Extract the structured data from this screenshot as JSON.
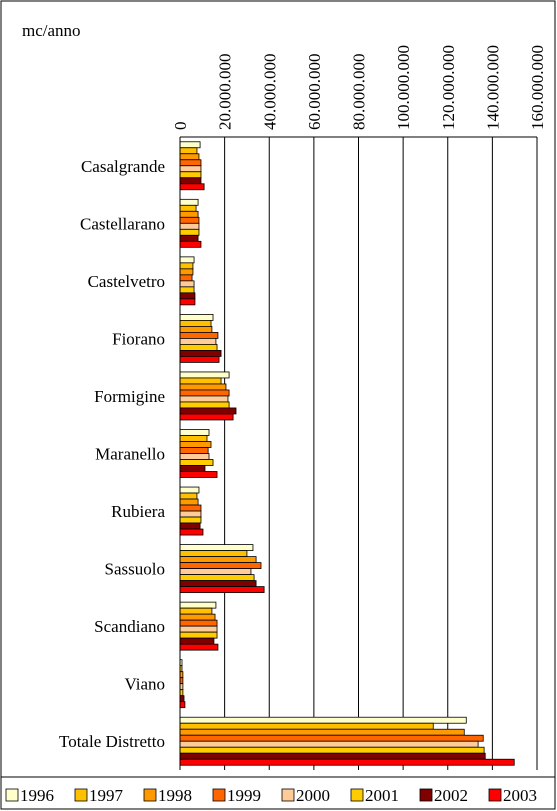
{
  "chart_data": {
    "type": "barh",
    "unit_label": "mc/anno",
    "categories": [
      "Casalgrande",
      "Castellarano",
      "Castelvetro",
      "Fiorano",
      "Formigine",
      "Maranello",
      "Rubiera",
      "Sassuolo",
      "Scandiano",
      "Viano",
      "Totale Distretto"
    ],
    "series": [
      {
        "name": "1996",
        "color": "#ffffcc",
        "values": [
          9000000,
          8100000,
          6300000,
          14800000,
          22000000,
          13000000,
          8500000,
          32700000,
          16100000,
          900000,
          128300000
        ]
      },
      {
        "name": "1997",
        "color": "#ffc000",
        "values": [
          7600000,
          7200000,
          5800000,
          13900000,
          18400000,
          12100000,
          7600000,
          30000000,
          14300000,
          900000,
          113500000
        ]
      },
      {
        "name": "1998",
        "color": "#ff9900",
        "values": [
          8500000,
          8100000,
          5800000,
          14300000,
          20600000,
          13900000,
          8100000,
          34100000,
          15700000,
          1300000,
          127400000
        ]
      },
      {
        "name": "1999",
        "color": "#ff6600",
        "values": [
          9400000,
          8500000,
          5400000,
          17000000,
          22000000,
          12600000,
          9400000,
          36300000,
          16600000,
          1300000,
          135900000
        ]
      },
      {
        "name": "2000",
        "color": "#ffcc99",
        "values": [
          9400000,
          8500000,
          6300000,
          16100000,
          21500000,
          13000000,
          9400000,
          31800000,
          16600000,
          1300000,
          133600000
        ]
      },
      {
        "name": "2001",
        "color": "#ffcc00",
        "values": [
          9400000,
          8500000,
          6300000,
          16600000,
          22000000,
          14800000,
          9400000,
          33200000,
          16600000,
          1300000,
          136300000
        ]
      },
      {
        "name": "2002",
        "color": "#800000",
        "values": [
          9400000,
          8100000,
          6700000,
          18400000,
          25100000,
          11200000,
          9000000,
          34100000,
          15200000,
          1800000,
          136800000
        ]
      },
      {
        "name": "2003",
        "color": "#ff0000",
        "values": [
          10800000,
          9400000,
          6700000,
          17500000,
          23800000,
          16600000,
          10300000,
          37700000,
          17000000,
          2200000,
          149800000
        ]
      }
    ],
    "xlim": [
      0,
      160000000
    ],
    "xticks": [
      0,
      {
        "value": 20000000,
        "label": "20.000.000"
      },
      {
        "value": 40000000,
        "label": "40.000.000"
      },
      {
        "value": 60000000,
        "label": "60.000.000"
      },
      {
        "value": 80000000,
        "label": "80.000.000"
      },
      {
        "value": 100000000,
        "label": "100.000.000"
      },
      {
        "value": 120000000,
        "label": "120.000.000"
      },
      {
        "value": 140000000,
        "label": "140.000.000"
      },
      {
        "value": 160000000,
        "label": "160.000.000"
      }
    ],
    "grid": true,
    "legend": "bottom"
  }
}
